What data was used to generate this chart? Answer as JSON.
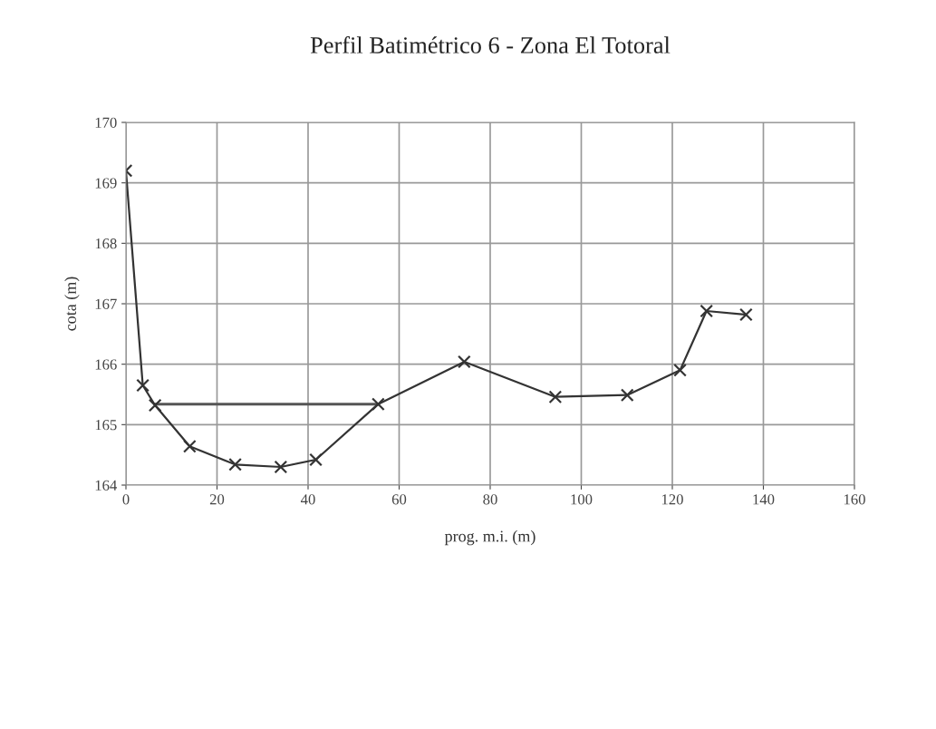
{
  "chart_data": {
    "type": "line",
    "title": "Perfil Batimétrico 6 - Zona El Totoral",
    "xlabel": "prog. m.i. (m)",
    "ylabel": "cota (m)",
    "series": [
      {
        "color": "#555555",
        "marker": "none",
        "x": [
          6.4,
          55.4
        ],
        "values": [
          165.34,
          165.34
        ]
      },
      {
        "color": "#333333",
        "marker": "cross",
        "x": [
          0,
          3.7,
          6.4,
          14,
          24,
          34,
          41.7,
          55.4,
          74.3,
          94.3,
          110.1,
          121.7,
          127.5,
          136.2
        ],
        "values": [
          169.2,
          165.65,
          165.32,
          164.64,
          164.34,
          164.3,
          164.42,
          165.34,
          166.04,
          165.46,
          165.49,
          165.9,
          166.88,
          166.82
        ]
      }
    ],
    "xlim": [
      0,
      160
    ],
    "xticks": [
      0,
      20,
      40,
      60,
      80,
      100,
      120,
      140,
      160
    ],
    "ylim": [
      164,
      170
    ],
    "yticks": [
      164,
      165,
      166,
      167,
      168,
      169,
      170
    ],
    "grid": true,
    "legend": false
  }
}
